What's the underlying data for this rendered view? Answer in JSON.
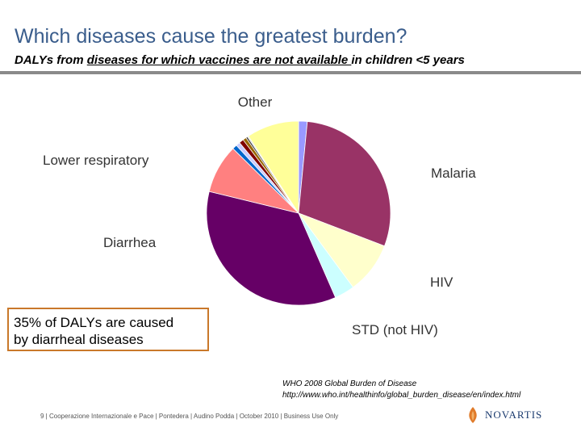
{
  "header": {
    "title": "Which diseases cause the greatest burden?",
    "subtitle_pre": "DALYs from ",
    "subtitle_underlined": "diseases for which vaccines are not available ",
    "subtitle_post": "in children <5 years"
  },
  "chart_data": {
    "type": "pie",
    "title": "",
    "slices": [
      {
        "label": "",
        "value": 1.5,
        "color": "#9999ff"
      },
      {
        "label": "Malaria",
        "value": 29,
        "color": "#993366"
      },
      {
        "label": "HIV",
        "value": 9,
        "color": "#ffffcc"
      },
      {
        "label": "STD (not HIV)",
        "value": 3.5,
        "color": "#ccffff"
      },
      {
        "label": "Diarrhea",
        "value": 35,
        "color": "#660066"
      },
      {
        "label": "Lower respiratory",
        "value": 8.5,
        "color": "#ff8080"
      },
      {
        "label": "",
        "value": 0.8,
        "color": "#0066cc"
      },
      {
        "label": "",
        "value": 0.7,
        "color": "#ccccff"
      },
      {
        "label": "",
        "value": 0.8,
        "color": "#800000"
      },
      {
        "label": "",
        "value": 0.6,
        "color": "#996600"
      },
      {
        "label": "",
        "value": 0.3,
        "color": "#333333"
      },
      {
        "label": "",
        "value": 0.2,
        "color": "#cccccc"
      },
      {
        "label": "Other",
        "value": 9.1,
        "color": "#ffff99"
      }
    ],
    "labels": {
      "other": "Other",
      "malaria": "Malaria",
      "lower_respiratory": "Lower respiratory",
      "diarrhea": "Diarrhea",
      "hiv": "HIV",
      "std": "STD (not HIV)"
    }
  },
  "callout": {
    "line1": "35% of DALYs are caused",
    "line2": "by diarrheal diseases"
  },
  "source": {
    "line1": "WHO 2008 Global Burden of Disease",
    "line2": "http://www.who.int/healthinfo/global_burden_disease/en/index.html"
  },
  "footer": {
    "text": "9 | Cooperazione Internazionale e Pace | Pontedera | Audino Podda | October 2010 | Business Use Only"
  },
  "brand": {
    "name": "NOVARTIS",
    "color": "#1a3a6e",
    "accent": "#e07b2a"
  }
}
